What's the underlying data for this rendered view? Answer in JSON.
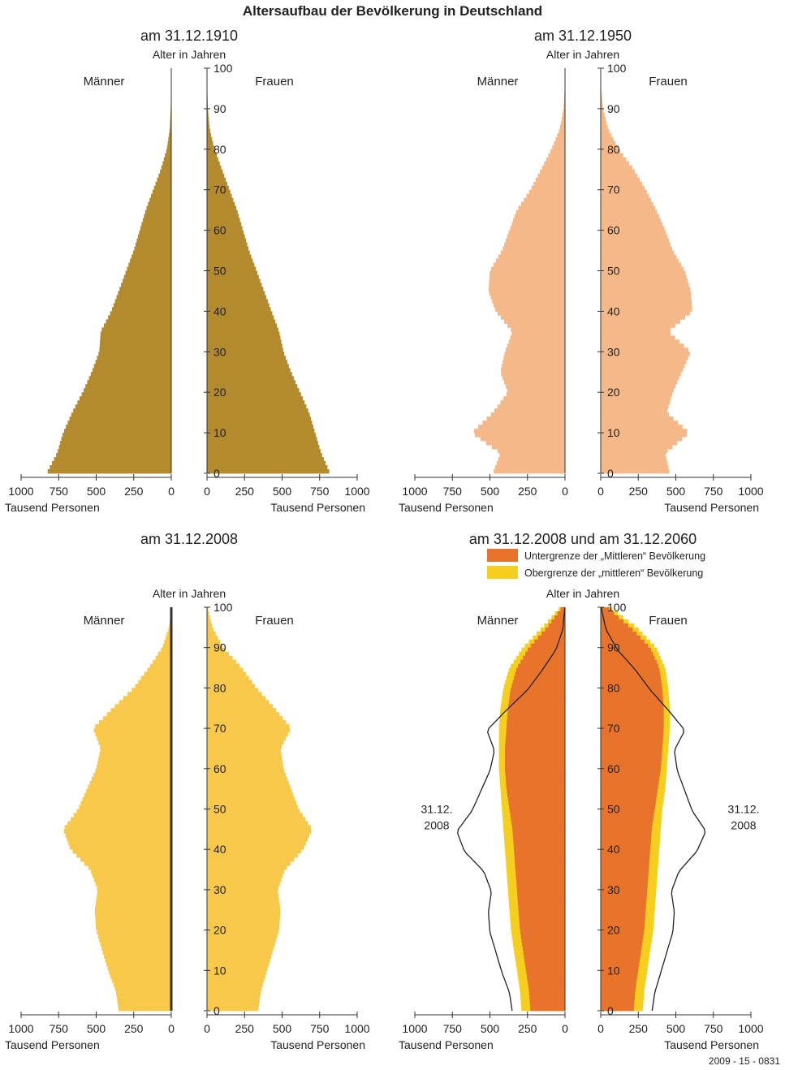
{
  "title": "Altersaufbau der Bevölkerung in Deutschland",
  "footer_code": "2009 - 15 - 0831",
  "age_axis_label": "Alter in Jahren",
  "male_label": "Männer",
  "female_label": "Frauen",
  "x_axis_label": "Tausend Personen",
  "x_ticks": [
    "1000",
    "750",
    "500",
    "250",
    "0"
  ],
  "x_ticks_right": [
    "0",
    "250",
    "500",
    "750",
    "1000"
  ],
  "age_ticks": [
    "0",
    "10",
    "20",
    "30",
    "40",
    "50",
    "60",
    "70",
    "80",
    "90",
    "100"
  ],
  "legend": {
    "lower": "Untergrenze der „Mittleren“ Bevölkerung",
    "upper": "Obergrenze der „mittleren“ Bevölkerung",
    "lower_color": "#e8732a",
    "upper_color": "#f6cf1e"
  },
  "outline_label_line1": "31.12.",
  "outline_label_line2": "2008",
  "colors": {
    "p1910": "#b38a2e",
    "p1950": "#f5b888",
    "p2008": "#f8c84a",
    "outline": "#222222"
  },
  "chart_data": [
    {
      "type": "bar",
      "title": "am 31.12.1910",
      "ylabel": "Alter in Jahren",
      "xlabel": "Tausend Personen",
      "xlim": [
        0,
        1000
      ],
      "ylim": [
        0,
        100
      ],
      "age": [
        0,
        5,
        10,
        15,
        20,
        25,
        30,
        35,
        40,
        45,
        50,
        55,
        60,
        65,
        70,
        75,
        80,
        85,
        90,
        95,
        100
      ],
      "men": [
        830,
        760,
        720,
        660,
        590,
        530,
        480,
        470,
        400,
        350,
        300,
        250,
        210,
        170,
        120,
        70,
        30,
        10,
        4,
        1,
        0
      ],
      "women": [
        820,
        760,
        720,
        680,
        620,
        560,
        510,
        480,
        430,
        380,
        330,
        280,
        240,
        200,
        150,
        100,
        50,
        18,
        6,
        2,
        0
      ]
    },
    {
      "type": "bar",
      "title": "am 31.12.1950",
      "ylabel": "Alter in Jahren",
      "xlabel": "Tausend Personen",
      "xlim": [
        0,
        1000
      ],
      "ylim": [
        0,
        100
      ],
      "age": [
        0,
        5,
        10,
        15,
        20,
        25,
        30,
        35,
        40,
        45,
        50,
        55,
        60,
        65,
        70,
        75,
        80,
        85,
        90,
        95,
        100
      ],
      "men": [
        480,
        430,
        620,
        480,
        380,
        430,
        400,
        350,
        460,
        510,
        500,
        420,
        370,
        320,
        230,
        160,
        90,
        35,
        10,
        2,
        0
      ],
      "women": [
        460,
        430,
        590,
        440,
        480,
        540,
        600,
        450,
        610,
        600,
        560,
        480,
        430,
        370,
        300,
        220,
        120,
        50,
        15,
        3,
        0
      ]
    },
    {
      "type": "bar",
      "title": "am 31.12.2008",
      "ylabel": "Alter in Jahren",
      "xlabel": "Tausend Personen",
      "xlim": [
        0,
        1000
      ],
      "ylim": [
        0,
        100
      ],
      "age": [
        0,
        5,
        10,
        15,
        20,
        25,
        30,
        35,
        40,
        45,
        50,
        55,
        60,
        65,
        70,
        75,
        80,
        85,
        90,
        95,
        100
      ],
      "men": [
        350,
        370,
        420,
        460,
        500,
        510,
        490,
        540,
        670,
        720,
        620,
        560,
        500,
        470,
        520,
        390,
        250,
        150,
        60,
        15,
        2
      ],
      "women": [
        340,
        360,
        400,
        440,
        480,
        490,
        470,
        520,
        640,
        700,
        610,
        560,
        510,
        490,
        560,
        450,
        330,
        230,
        110,
        35,
        5
      ]
    },
    {
      "type": "bar",
      "title": "am 31.12.2008 und am 31.12.2060",
      "ylabel": "Alter in Jahren",
      "xlabel": "Tausend Personen",
      "xlim": [
        0,
        1000
      ],
      "ylim": [
        0,
        100
      ],
      "legend": [
        "Untergrenze der „Mittleren“ Bevölkerung",
        "Obergrenze der „mittleren“ Bevölkerung"
      ],
      "age": [
        0,
        5,
        10,
        15,
        20,
        25,
        30,
        35,
        40,
        45,
        50,
        55,
        60,
        65,
        70,
        75,
        80,
        85,
        90,
        95,
        100
      ],
      "men_lower": [
        230,
        240,
        260,
        280,
        300,
        310,
        320,
        330,
        340,
        350,
        370,
        390,
        400,
        400,
        390,
        380,
        360,
        320,
        240,
        120,
        20
      ],
      "men_upper": [
        290,
        300,
        320,
        340,
        360,
        370,
        380,
        390,
        400,
        410,
        420,
        430,
        440,
        440,
        440,
        430,
        410,
        370,
        280,
        150,
        30
      ],
      "women_lower": [
        220,
        230,
        250,
        270,
        290,
        300,
        310,
        320,
        330,
        340,
        360,
        380,
        400,
        410,
        420,
        420,
        410,
        390,
        330,
        200,
        40
      ],
      "women_upper": [
        280,
        290,
        310,
        330,
        350,
        360,
        370,
        380,
        390,
        400,
        410,
        430,
        440,
        450,
        460,
        460,
        450,
        430,
        370,
        240,
        60
      ],
      "outline_2008_label": "31.12. 2008"
    }
  ]
}
